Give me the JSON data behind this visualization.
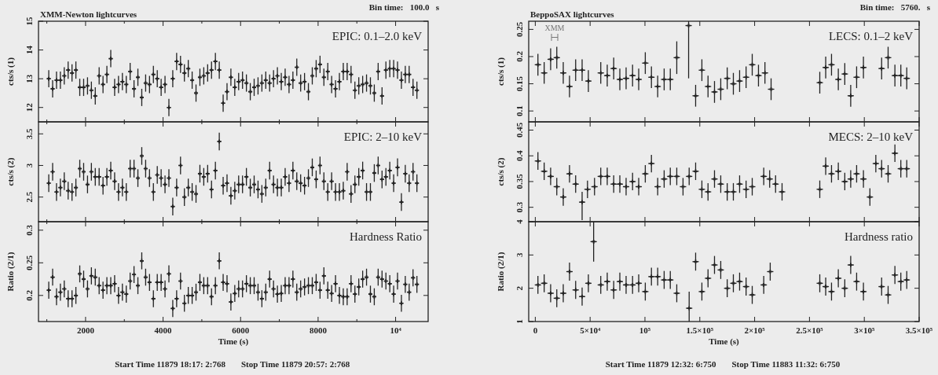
{
  "chart_data": [
    {
      "type": "scatter",
      "title": "XMM-Newton lightcurves",
      "ylabel": "cts/s (1)",
      "annotations": [
        "EPIC: 0.1–2.0 keV",
        "Bin time:   100.0   s"
      ],
      "color": "#222222",
      "marker": "cross",
      "tick_labels": "y",
      "xlim": [
        785,
        10840
      ],
      "ylim": [
        11.5,
        15
      ],
      "yticks": [
        12,
        13,
        14,
        15
      ],
      "xticks": [
        {
          "value": 1000,
          "label": null
        },
        2000,
        {
          "value": 3000,
          "label": null
        },
        4000,
        {
          "value": 5000,
          "label": null
        },
        6000,
        {
          "value": 7000,
          "label": null
        },
        8000,
        {
          "value": 9000,
          "label": null
        },
        10000
      ],
      "x": [
        1050,
        1150,
        1250,
        1350,
        1450,
        1550,
        1650,
        1750,
        1850,
        1950,
        2050,
        2150,
        2250,
        2350,
        2450,
        2550,
        2650,
        2750,
        2850,
        2950,
        3050,
        3150,
        3250,
        3350,
        3450,
        3550,
        3650,
        3750,
        3850,
        3950,
        4050,
        4150,
        4250,
        4350,
        4450,
        4550,
        4650,
        4750,
        4850,
        4950,
        5050,
        5150,
        5250,
        5350,
        5450,
        5550,
        5650,
        5750,
        5850,
        5950,
        6050,
        6150,
        6250,
        6350,
        6450,
        6550,
        6650,
        6750,
        6850,
        6950,
        7050,
        7150,
        7250,
        7350,
        7450,
        7550,
        7650,
        7750,
        7850,
        7950,
        8050,
        8150,
        8250,
        8350,
        8450,
        8550,
        8650,
        8750,
        8850,
        8950,
        9050,
        9150,
        9250,
        9350,
        9450,
        9550,
        9650,
        9750,
        9850,
        9950,
        10050,
        10150,
        10250,
        10350,
        10450,
        10550
      ],
      "values": [
        13.0,
        12.65,
        12.95,
        12.95,
        13.1,
        13.3,
        13.2,
        13.3,
        12.7,
        12.7,
        12.75,
        12.6,
        12.4,
        13.1,
        12.8,
        13.15,
        13.7,
        12.7,
        12.8,
        12.9,
        12.8,
        13.25,
        12.65,
        13.05,
        12.35,
        12.85,
        12.8,
        13.15,
        13.0,
        12.7,
        12.8,
        12.0,
        13.0,
        13.6,
        13.5,
        13.2,
        13.35,
        12.95,
        12.5,
        13.05,
        13.1,
        13.2,
        13.3,
        13.6,
        13.3,
        12.15,
        12.55,
        13.05,
        12.7,
        12.9,
        12.95,
        12.85,
        12.55,
        12.7,
        12.75,
        12.85,
        12.95,
        12.85,
        13.0,
        13.1,
        12.9,
        13.05,
        12.8,
        12.95,
        13.4,
        12.85,
        12.9,
        12.55,
        13.1,
        13.35,
        13.5,
        13.05,
        13.25,
        12.8,
        12.65,
        12.9,
        13.25,
        13.25,
        13.15,
        12.6,
        12.75,
        12.8,
        12.85,
        12.75,
        12.5,
        13.25,
        12.4,
        13.3,
        13.35,
        13.35,
        13.3,
        12.95,
        13.15,
        13.15,
        12.7,
        12.6
      ],
      "errors": [
        0.3,
        0.3,
        0.3,
        0.3,
        0.3,
        0.3,
        0.3,
        0.3,
        0.3,
        0.3,
        0.3,
        0.3,
        0.3,
        0.3,
        0.3,
        0.3,
        0.3,
        0.3,
        0.3,
        0.3,
        0.3,
        0.3,
        0.3,
        0.3,
        0.3,
        0.3,
        0.3,
        0.3,
        0.3,
        0.3,
        0.3,
        0.3,
        0.3,
        0.3,
        0.3,
        0.3,
        0.3,
        0.3,
        0.3,
        0.3,
        0.3,
        0.3,
        0.3,
        0.3,
        0.3,
        0.3,
        0.3,
        0.3,
        0.3,
        0.3,
        0.3,
        0.3,
        0.3,
        0.3,
        0.3,
        0.3,
        0.3,
        0.3,
        0.3,
        0.3,
        0.3,
        0.3,
        0.3,
        0.3,
        0.3,
        0.3,
        0.3,
        0.3,
        0.3,
        0.3,
        0.3,
        0.3,
        0.3,
        0.3,
        0.3,
        0.3,
        0.3,
        0.3,
        0.3,
        0.3,
        0.3,
        0.3,
        0.3,
        0.3,
        0.3,
        0.3,
        0.3,
        0.3,
        0.3,
        0.3,
        0.3,
        0.3,
        0.3,
        0.3,
        0.3,
        0.3
      ],
      "xerrors": [
        50,
        50,
        50,
        50,
        50,
        50,
        50,
        50,
        50,
        50,
        50,
        50,
        50,
        50,
        50,
        50,
        50,
        50,
        50,
        50,
        50,
        50,
        50,
        50,
        50,
        50,
        50,
        50,
        50,
        50,
        50,
        50,
        50,
        50,
        50,
        50,
        50,
        50,
        50,
        50,
        50,
        50,
        50,
        50,
        50,
        50,
        50,
        50,
        50,
        50,
        50,
        50,
        50,
        50,
        50,
        50,
        50,
        50,
        50,
        50,
        50,
        50,
        50,
        50,
        50,
        50,
        50,
        50,
        50,
        50,
        50,
        50,
        50,
        50,
        50,
        50,
        50,
        50,
        50,
        50,
        50,
        50,
        50,
        50,
        50,
        50,
        50,
        50,
        50,
        50,
        50,
        50,
        50,
        50,
        50,
        50
      ]
    },
    {
      "type": "scatter",
      "title": "BeppoSAX lightcurves",
      "ylabel": "cts/s (1)",
      "annotations": [
        "LECS: 0.1–2 keV",
        "Bin time:   5760.   s",
        "XMM"
      ],
      "color": "#222222",
      "marker": "cross",
      "tick_labels": "y",
      "xlim": [
        -6000,
        350000
      ],
      "ylim": [
        0.08,
        0.265
      ],
      "yticks": [
        0.1,
        0.15,
        0.2,
        0.25
      ],
      "xticks": [
        0,
        50000,
        100000,
        150000,
        200000,
        250000,
        300000,
        350000
      ],
      "x": [
        2400,
        8100,
        14000,
        19600,
        25500,
        31200,
        36800,
        42700,
        48400,
        59700,
        65600,
        71500,
        77100,
        82800,
        88700,
        94300,
        100300,
        105900,
        111600,
        117500,
        123100,
        129000,
        139800,
        146200,
        151900,
        157500,
        163400,
        169100,
        175000,
        180600,
        186300,
        192200,
        197800,
        203500,
        209400,
        215000,
        259400,
        264800,
        270100,
        276300,
        282200,
        287600,
        293000,
        299200,
        315800,
        321700,
        327900,
        333300,
        338700
      ],
      "values": [
        0.185,
        0.17,
        0.195,
        0.198,
        0.17,
        0.145,
        0.175,
        0.175,
        0.155,
        0.17,
        0.165,
        0.178,
        0.158,
        0.16,
        0.165,
        0.158,
        0.188,
        0.162,
        0.145,
        0.158,
        0.158,
        0.198,
        0.257,
        0.128,
        0.175,
        0.145,
        0.135,
        0.14,
        0.16,
        0.15,
        0.155,
        0.162,
        0.185,
        0.165,
        0.17,
        0.14,
        0.152,
        0.18,
        0.185,
        0.158,
        0.168,
        0.128,
        0.162,
        0.18,
        0.178,
        0.198,
        0.165,
        0.165,
        0.16
      ],
      "errors": [
        0.02,
        0.02,
        0.02,
        0.02,
        0.02,
        0.02,
        0.02,
        0.02,
        0.02,
        0.02,
        0.02,
        0.02,
        0.02,
        0.02,
        0.02,
        0.02,
        0.02,
        0.02,
        0.02,
        0.02,
        0.02,
        0.03,
        [
          0.16,
          0.265
        ],
        0.02,
        0.02,
        0.02,
        0.02,
        0.02,
        0.02,
        0.02,
        0.02,
        0.02,
        0.02,
        0.02,
        0.02,
        0.02,
        0.02,
        0.02,
        0.02,
        0.02,
        0.02,
        0.02,
        0.02,
        0.02,
        0.02,
        0.02,
        0.02,
        0.02,
        0.02
      ],
      "xerrors": [
        2880,
        2880,
        2880,
        2880,
        2880,
        2880,
        2880,
        2880,
        2880,
        2880,
        2880,
        2880,
        2880,
        2880,
        2880,
        2880,
        2880,
        2880,
        2880,
        2880,
        2880,
        2880,
        2880,
        2880,
        2880,
        2880,
        2880,
        2880,
        2880,
        2880,
        2880,
        2880,
        2880,
        2880,
        2880,
        2880,
        2880,
        2880,
        2880,
        2880,
        2880,
        2880,
        2880,
        2880,
        2880,
        2880,
        2880,
        2880,
        2880
      ]
    },
    {
      "type": "scatter",
      "ylabel": "cts/s (2)",
      "annotations": [
        "EPIC: 2–10 keV"
      ],
      "color": "#222222",
      "marker": "cross",
      "tick_labels": "y",
      "xlim": [
        785,
        10840
      ],
      "ylim": [
        2.11,
        3.69
      ],
      "yticks": [
        2.5,
        3,
        3.5
      ],
      "xticks": [
        {
          "value": 1000,
          "label": null
        },
        2000,
        {
          "value": 3000,
          "label": null
        },
        4000,
        {
          "value": 5000,
          "label": null
        },
        6000,
        {
          "value": 7000,
          "label": null
        },
        8000,
        {
          "value": 9000,
          "label": null
        },
        10000
      ],
      "x": [
        1050,
        1150,
        1250,
        1350,
        1450,
        1550,
        1650,
        1750,
        1850,
        1950,
        2050,
        2150,
        2250,
        2350,
        2450,
        2550,
        2650,
        2750,
        2850,
        2950,
        3050,
        3150,
        3250,
        3350,
        3450,
        3550,
        3650,
        3750,
        3850,
        3950,
        4050,
        4150,
        4250,
        4350,
        4450,
        4550,
        4650,
        4750,
        4850,
        4950,
        5050,
        5150,
        5250,
        5350,
        5450,
        5550,
        5650,
        5750,
        5850,
        5950,
        6050,
        6150,
        6250,
        6350,
        6450,
        6550,
        6650,
        6750,
        6850,
        6950,
        7050,
        7150,
        7250,
        7350,
        7450,
        7550,
        7650,
        7750,
        7850,
        7950,
        8050,
        8150,
        8250,
        8350,
        8450,
        8550,
        8650,
        8750,
        8850,
        8950,
        9050,
        9150,
        9250,
        9350,
        9450,
        9550,
        9650,
        9750,
        9850,
        9950,
        10050,
        10150,
        10250,
        10350,
        10450,
        10550
      ],
      "values": [
        2.72,
        2.9,
        2.58,
        2.65,
        2.75,
        2.6,
        2.58,
        2.65,
        2.95,
        2.9,
        2.7,
        2.9,
        2.82,
        2.82,
        2.68,
        2.82,
        2.92,
        2.75,
        2.58,
        2.65,
        2.58,
        2.95,
        2.95,
        2.8,
        3.15,
        2.95,
        2.8,
        2.58,
        2.85,
        2.8,
        2.7,
        2.8,
        2.35,
        2.65,
        3.0,
        2.5,
        2.65,
        2.58,
        2.55,
        2.87,
        2.82,
        2.87,
        2.62,
        2.92,
        3.38,
        2.68,
        2.72,
        2.52,
        2.6,
        2.7,
        2.7,
        2.82,
        2.65,
        2.7,
        2.62,
        2.55,
        2.65,
        2.92,
        2.7,
        2.65,
        2.65,
        2.82,
        2.72,
        2.92,
        2.75,
        2.72,
        2.68,
        2.8,
        2.97,
        2.78,
        3.0,
        2.75,
        2.58,
        2.75,
        2.58,
        2.58,
        2.6,
        2.9,
        2.55,
        2.7,
        2.82,
        2.92,
        2.58,
        2.58,
        2.88,
        3.0,
        2.78,
        2.82,
        2.92,
        2.72,
        2.97,
        2.42,
        2.87,
        2.72,
        2.9,
        2.72
      ],
      "errors": [
        0.14,
        0.14,
        0.14,
        0.14,
        0.14,
        0.14,
        0.14,
        0.14,
        0.14,
        0.14,
        0.14,
        0.14,
        0.14,
        0.14,
        0.14,
        0.14,
        0.14,
        0.14,
        0.14,
        0.14,
        0.14,
        0.14,
        0.14,
        0.14,
        0.14,
        0.14,
        0.14,
        0.14,
        0.14,
        0.14,
        0.14,
        0.14,
        0.14,
        0.14,
        0.14,
        0.14,
        0.14,
        0.14,
        0.14,
        0.14,
        0.14,
        0.14,
        0.14,
        0.14,
        0.14,
        0.14,
        0.14,
        0.14,
        0.14,
        0.14,
        0.14,
        0.14,
        0.14,
        0.14,
        0.14,
        0.14,
        0.14,
        0.14,
        0.14,
        0.14,
        0.14,
        0.14,
        0.14,
        0.14,
        0.14,
        0.14,
        0.14,
        0.14,
        0.14,
        0.14,
        0.14,
        0.14,
        0.14,
        0.14,
        0.14,
        0.14,
        0.14,
        0.14,
        0.14,
        0.14,
        0.14,
        0.14,
        0.14,
        0.14,
        0.14,
        0.14,
        0.14,
        0.14,
        0.14,
        0.14,
        0.14,
        0.14,
        0.14,
        0.14,
        0.14,
        0.14
      ],
      "xerrors": [
        50,
        50,
        50,
        50,
        50,
        50,
        50,
        50,
        50,
        50,
        50,
        50,
        50,
        50,
        50,
        50,
        50,
        50,
        50,
        50,
        50,
        50,
        50,
        50,
        50,
        50,
        50,
        50,
        50,
        50,
        50,
        50,
        50,
        50,
        50,
        50,
        50,
        50,
        50,
        50,
        50,
        50,
        50,
        50,
        50,
        50,
        50,
        50,
        50,
        50,
        50,
        50,
        50,
        50,
        50,
        50,
        50,
        50,
        50,
        50,
        50,
        50,
        50,
        50,
        50,
        50,
        50,
        50,
        50,
        50,
        50,
        50,
        50,
        50,
        50,
        50,
        50,
        50,
        50,
        50,
        50,
        50,
        50,
        50,
        50,
        50,
        50,
        50,
        50,
        50,
        50,
        50,
        50,
        50,
        50,
        50
      ]
    },
    {
      "type": "scatter",
      "ylabel": "cts/s (2)",
      "annotations": [
        "MECS: 2–10 keV"
      ],
      "color": "#222222",
      "marker": "cross",
      "tick_labels": "y",
      "xlim": [
        -6000,
        350000
      ],
      "ylim": [
        0.272,
        0.466
      ],
      "yticks": [
        0.3,
        0.35,
        0.4,
        0.45
      ],
      "xticks": [
        0,
        50000,
        100000,
        150000,
        200000,
        250000,
        300000,
        350000
      ],
      "x": [
        2400,
        8100,
        14000,
        19600,
        25500,
        31200,
        36800,
        42700,
        47600,
        54000,
        59700,
        65600,
        71500,
        77100,
        82800,
        88700,
        94300,
        100300,
        105900,
        111600,
        117500,
        123100,
        129000,
        134700,
        140300,
        146200,
        151900,
        157500,
        163400,
        169100,
        175000,
        180600,
        186300,
        192200,
        197800,
        208300,
        213700,
        219100,
        225000,
        259400,
        264800,
        270100,
        276300,
        282200,
        287600,
        293000,
        299200,
        305100,
        310500,
        315800,
        321700,
        327900,
        333300,
        338700
      ],
      "values": [
        0.39,
        0.37,
        0.36,
        0.34,
        0.32,
        0.365,
        0.345,
        0.31,
        0.335,
        0.34,
        0.36,
        0.36,
        0.345,
        0.345,
        0.34,
        0.35,
        0.34,
        0.365,
        0.385,
        0.34,
        0.355,
        0.36,
        0.36,
        0.34,
        0.36,
        0.37,
        0.335,
        0.33,
        0.355,
        0.345,
        0.33,
        0.33,
        0.345,
        0.335,
        0.34,
        0.36,
        0.355,
        0.345,
        0.33,
        0.335,
        0.38,
        0.365,
        0.37,
        0.35,
        0.355,
        0.365,
        0.355,
        0.32,
        0.385,
        0.375,
        0.365,
        0.405,
        0.375,
        0.375
      ],
      "errors": [
        0.017,
        0.017,
        0.017,
        0.017,
        0.017,
        0.017,
        0.017,
        [
          0.275,
          0.33
        ],
        0.017,
        0.017,
        0.017,
        0.017,
        0.017,
        0.017,
        0.017,
        0.017,
        0.017,
        0.017,
        0.017,
        0.017,
        0.017,
        0.017,
        0.017,
        0.017,
        0.017,
        0.017,
        0.017,
        0.017,
        0.017,
        0.017,
        0.017,
        0.017,
        0.017,
        0.017,
        0.017,
        0.017,
        0.017,
        0.017,
        0.017,
        0.017,
        0.017,
        0.017,
        0.017,
        0.017,
        0.017,
        0.017,
        0.017,
        0.017,
        0.017,
        0.017,
        0.017,
        0.017,
        0.017,
        0.017
      ],
      "xerrors": [
        2880,
        2880,
        2880,
        2880,
        2880,
        2880,
        2880,
        2880,
        2880,
        2880,
        2880,
        2880,
        2880,
        2880,
        2880,
        2880,
        2880,
        2880,
        2880,
        2880,
        2880,
        2880,
        2880,
        2880,
        2880,
        2880,
        2880,
        2880,
        2880,
        2880,
        2880,
        2880,
        2880,
        2880,
        2880,
        2880,
        2880,
        2880,
        2880,
        2880,
        2880,
        2880,
        2880,
        2880,
        2880,
        2880,
        2880,
        2880,
        2880,
        2880,
        2880,
        2880,
        2880,
        2880
      ]
    },
    {
      "type": "scatter",
      "xlabel": "Time (s)",
      "ylabel": "Ratio (2/1)",
      "annotations": [
        "Hardness Ratio",
        "Start Time 11879 18:17: 2:768",
        "Stop Time 11879 20:57: 2:768"
      ],
      "color": "#222222",
      "marker": "cross",
      "xlim": [
        785,
        10840
      ],
      "ylim": [
        0.16,
        0.313
      ],
      "yticks": [
        0.2,
        0.25,
        0.3
      ],
      "xticks": [
        {
          "value": 1000,
          "label": null
        },
        2000,
        {
          "value": 3000,
          "label": null
        },
        4000,
        {
          "value": 5000,
          "label": null
        },
        6000,
        {
          "value": 7000,
          "label": null
        },
        8000,
        {
          "value": 9000,
          "label": null
        },
        {
          "value": 10000,
          "label": "10⁴"
        }
      ],
      "x": [
        1050,
        1150,
        1250,
        1350,
        1450,
        1550,
        1650,
        1750,
        1850,
        1950,
        2050,
        2150,
        2250,
        2350,
        2450,
        2550,
        2650,
        2750,
        2850,
        2950,
        3050,
        3150,
        3250,
        3350,
        3450,
        3550,
        3650,
        3750,
        3850,
        3950,
        4050,
        4150,
        4250,
        4350,
        4450,
        4550,
        4650,
        4750,
        4850,
        4950,
        5050,
        5150,
        5250,
        5350,
        5450,
        5550,
        5650,
        5750,
        5850,
        5950,
        6050,
        6150,
        6250,
        6350,
        6450,
        6550,
        6650,
        6750,
        6850,
        6950,
        7050,
        7150,
        7250,
        7350,
        7450,
        7550,
        7650,
        7750,
        7850,
        7950,
        8050,
        8150,
        8250,
        8350,
        8450,
        8550,
        8650,
        8750,
        8850,
        8950,
        9050,
        9150,
        9250,
        9350,
        9450,
        9550,
        9650,
        9750,
        9850,
        9950,
        10050,
        10150,
        10250,
        10350,
        10450,
        10550
      ],
      "values": [
        0.208,
        0.228,
        0.198,
        0.205,
        0.21,
        0.195,
        0.195,
        0.2,
        0.233,
        0.225,
        0.21,
        0.23,
        0.228,
        0.215,
        0.208,
        0.215,
        0.215,
        0.218,
        0.2,
        0.205,
        0.202,
        0.222,
        0.232,
        0.215,
        0.253,
        0.228,
        0.22,
        0.195,
        0.22,
        0.22,
        0.21,
        0.233,
        0.18,
        0.195,
        0.222,
        0.188,
        0.2,
        0.2,
        0.205,
        0.22,
        0.215,
        0.215,
        0.198,
        0.215,
        0.253,
        0.22,
        0.218,
        0.19,
        0.203,
        0.21,
        0.21,
        0.218,
        0.215,
        0.215,
        0.205,
        0.195,
        0.205,
        0.225,
        0.21,
        0.202,
        0.203,
        0.215,
        0.215,
        0.225,
        0.205,
        0.21,
        0.213,
        0.215,
        0.215,
        0.22,
        0.208,
        0.23,
        0.208,
        0.203,
        0.218,
        0.2,
        0.198,
        0.198,
        0.218,
        0.202,
        0.213,
        0.225,
        0.228,
        0.202,
        0.198,
        0.228,
        0.225,
        0.222,
        0.218,
        0.202,
        0.222,
        0.188,
        0.217,
        0.205,
        0.227,
        0.217
      ],
      "errors": [
        0.013,
        0.013,
        0.013,
        0.013,
        0.013,
        0.013,
        0.013,
        0.013,
        0.013,
        0.013,
        0.013,
        0.013,
        0.013,
        0.013,
        0.013,
        0.013,
        0.013,
        0.013,
        0.013,
        0.013,
        0.013,
        0.013,
        0.013,
        0.013,
        0.013,
        0.013,
        0.013,
        0.013,
        0.013,
        0.013,
        0.013,
        0.013,
        0.013,
        0.013,
        0.013,
        0.013,
        0.013,
        0.013,
        0.013,
        0.013,
        0.013,
        0.013,
        0.013,
        0.013,
        0.013,
        0.013,
        0.013,
        0.013,
        0.013,
        0.013,
        0.013,
        0.013,
        0.013,
        0.013,
        0.013,
        0.013,
        0.013,
        0.013,
        0.013,
        0.013,
        0.013,
        0.013,
        0.013,
        0.013,
        0.013,
        0.013,
        0.013,
        0.013,
        0.013,
        0.013,
        0.013,
        0.013,
        0.013,
        0.013,
        0.013,
        0.013,
        0.013,
        0.013,
        0.013,
        0.013,
        0.013,
        0.013,
        0.013,
        0.013,
        0.013,
        0.013,
        0.013,
        0.013,
        0.013,
        0.013,
        0.013,
        0.013,
        0.013,
        0.013,
        0.013,
        0.013
      ],
      "xerrors": [
        50,
        50,
        50,
        50,
        50,
        50,
        50,
        50,
        50,
        50,
        50,
        50,
        50,
        50,
        50,
        50,
        50,
        50,
        50,
        50,
        50,
        50,
        50,
        50,
        50,
        50,
        50,
        50,
        50,
        50,
        50,
        50,
        50,
        50,
        50,
        50,
        50,
        50,
        50,
        50,
        50,
        50,
        50,
        50,
        50,
        50,
        50,
        50,
        50,
        50,
        50,
        50,
        50,
        50,
        50,
        50,
        50,
        50,
        50,
        50,
        50,
        50,
        50,
        50,
        50,
        50,
        50,
        50,
        50,
        50,
        50,
        50,
        50,
        50,
        50,
        50,
        50,
        50,
        50,
        50,
        50,
        50,
        50,
        50,
        50,
        50,
        50,
        50,
        50,
        50,
        50,
        50,
        50,
        50,
        50,
        50
      ]
    },
    {
      "type": "scatter",
      "xlabel": "Time (s)",
      "ylabel": "Ratio (2/1)",
      "annotations": [
        "Hardness ratio",
        "Start Time 11879 12:32: 6:750",
        "Stop Time 11883 11:32: 6:750"
      ],
      "color": "#222222",
      "marker": "cross",
      "xlim": [
        -6000,
        350000
      ],
      "ylim": [
        1,
        4
      ],
      "yticks": [
        1,
        2,
        3,
        4
      ],
      "xticks": [
        {
          "value": 0,
          "label": "0"
        },
        {
          "value": 50000,
          "label": "5×10⁴"
        },
        {
          "value": 100000,
          "label": "10⁵"
        },
        {
          "value": 150000,
          "label": "1.5×10⁵"
        },
        {
          "value": 200000,
          "label": "2×10⁵"
        },
        {
          "value": 250000,
          "label": "2.5×10⁵"
        },
        {
          "value": 300000,
          "label": "3×10⁵"
        },
        {
          "value": 350000,
          "label": "3.5×10⁵"
        }
      ],
      "x": [
        2400,
        8100,
        14000,
        19600,
        25500,
        31200,
        36800,
        42700,
        48400,
        53200,
        59700,
        65600,
        71500,
        77100,
        82800,
        88700,
        94300,
        100300,
        105900,
        111600,
        117500,
        123100,
        129000,
        140300,
        146200,
        151900,
        157500,
        163400,
        169100,
        175000,
        180600,
        186300,
        192200,
        197800,
        208300,
        214200,
        259400,
        264800,
        270100,
        276300,
        282200,
        287600,
        293000,
        299200,
        315800,
        321700,
        327900,
        333300,
        338700
      ],
      "values": [
        2.1,
        2.15,
        1.85,
        1.7,
        1.85,
        2.5,
        1.95,
        1.75,
        2.15,
        3.4,
        2.1,
        2.2,
        1.95,
        2.2,
        2.1,
        2.1,
        2.15,
        1.9,
        2.35,
        2.35,
        2.25,
        2.25,
        1.85,
        1.4,
        2.8,
        1.9,
        2.3,
        2.7,
        2.55,
        2.0,
        2.15,
        2.2,
        2.05,
        1.8,
        2.1,
        2.5,
        2.15,
        2.05,
        1.9,
        2.3,
        2.0,
        2.7,
        2.2,
        1.9,
        2.05,
        1.8,
        2.4,
        2.2,
        2.25
      ],
      "errors": [
        0.27,
        0.27,
        0.27,
        0.27,
        0.27,
        0.27,
        0.27,
        0.27,
        0.27,
        [
          2.8,
          4
        ],
        0.27,
        0.27,
        0.27,
        0.27,
        0.27,
        0.27,
        0.27,
        0.27,
        0.27,
        0.27,
        0.27,
        0.27,
        0.27,
        [
          1,
          1.9
        ],
        0.27,
        0.27,
        0.27,
        0.27,
        0.27,
        0.27,
        0.27,
        0.27,
        0.27,
        0.27,
        0.27,
        0.27,
        0.27,
        0.27,
        0.27,
        0.27,
        0.27,
        0.27,
        0.27,
        0.27,
        0.27,
        0.27,
        0.27,
        0.27,
        0.27
      ],
      "xerrors": [
        2880,
        2880,
        2880,
        2880,
        2880,
        2880,
        2880,
        2880,
        2880,
        2880,
        2880,
        2880,
        2880,
        2880,
        2880,
        2880,
        2880,
        2880,
        2880,
        2880,
        2880,
        2880,
        2880,
        2880,
        2880,
        2880,
        2880,
        2880,
        2880,
        2880,
        2880,
        2880,
        2880,
        2880,
        2880,
        2880,
        2880,
        2880,
        2880,
        2880,
        2880,
        2880,
        2880,
        2880,
        2880,
        2880,
        2880,
        2880,
        2880
      ]
    }
  ]
}
